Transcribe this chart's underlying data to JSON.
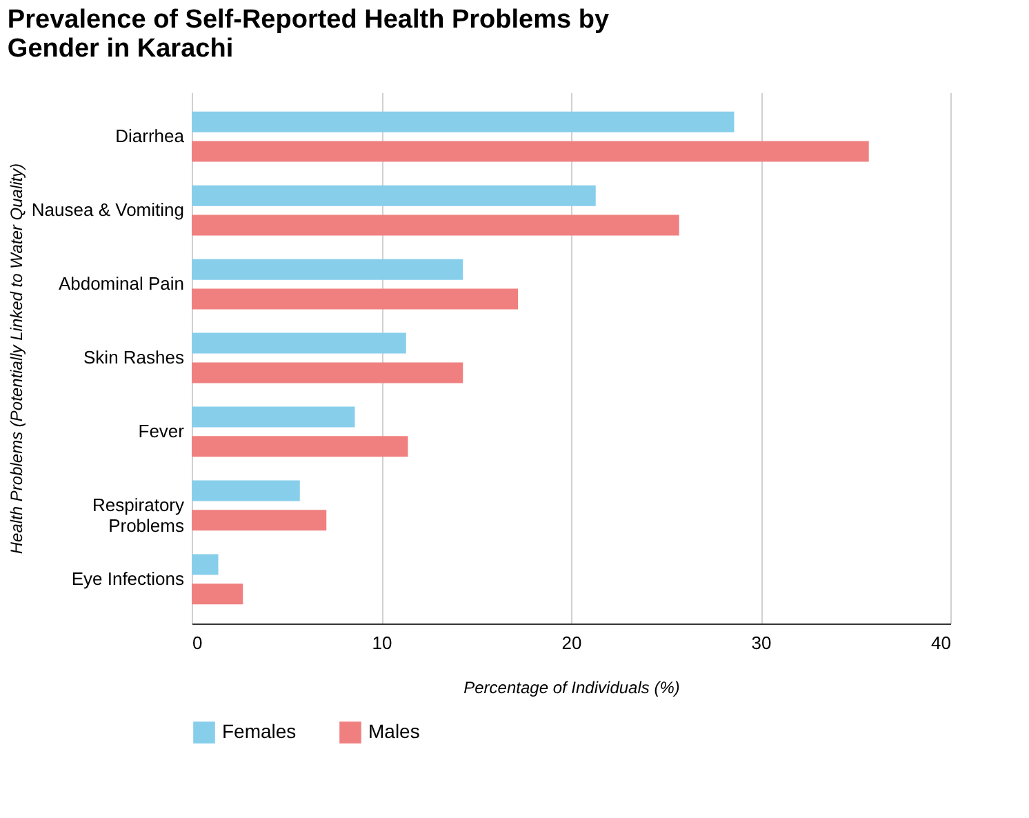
{
  "chart_data": {
    "type": "bar",
    "orientation": "horizontal",
    "title": "Prevalence of Self-Reported Health Problems by Gender in Karachi",
    "xlabel": "Percentage of Individuals (%)",
    "ylabel": "Health Problems (Potentially Linked to Water Quality)",
    "categories": [
      "Diarrhea",
      "Nausea & Vomiting",
      "Abdominal Pain",
      "Skin Rashes",
      "Fever",
      "Respiratory Problems",
      "Eye Infections"
    ],
    "series": [
      {
        "name": "Females",
        "color": "#87ceeb",
        "values": [
          28.6,
          21.3,
          14.3,
          11.3,
          8.6,
          5.7,
          1.4
        ]
      },
      {
        "name": "Males",
        "color": "#f08080",
        "values": [
          35.7,
          25.7,
          17.2,
          14.3,
          11.4,
          7.1,
          2.7
        ]
      }
    ],
    "xlim": [
      0,
      40
    ],
    "xticks": [
      0,
      10,
      20,
      30,
      40
    ],
    "grid": "x",
    "legend": "bottom"
  }
}
